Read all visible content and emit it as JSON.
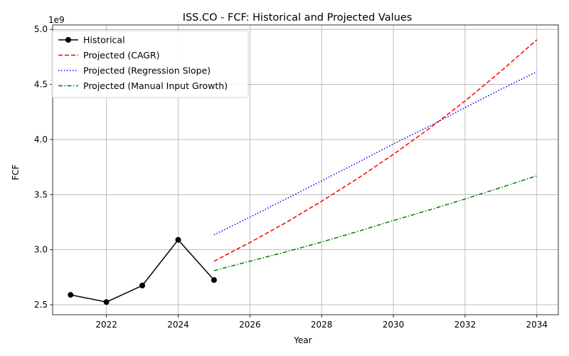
{
  "chart_data": {
    "type": "line",
    "title": "ISS.CO - FCF: Historical and Projected Values",
    "xlabel": "Year",
    "ylabel": "FCF",
    "y_offset_label": "1e9",
    "y_scale": 1000000000,
    "xlim": [
      2020.5,
      2034.6
    ],
    "ylim": [
      2410000000,
      5040000000
    ],
    "x_ticks": [
      2022,
      2024,
      2026,
      2028,
      2030,
      2032,
      2034
    ],
    "x_tick_labels": [
      "2022",
      "2024",
      "2026",
      "2028",
      "2030",
      "2032",
      "2034"
    ],
    "y_ticks": [
      2500000000,
      3000000000,
      3500000000,
      4000000000,
      4500000000,
      5000000000
    ],
    "y_tick_labels": [
      "2.5",
      "3.0",
      "3.5",
      "4.0",
      "4.5",
      "5.0"
    ],
    "grid": true,
    "legend_position": "top-left",
    "series": [
      {
        "name": "Historical",
        "color": "#000000",
        "style": "solid",
        "marker": "circle",
        "x": [
          2021,
          2022,
          2023,
          2024,
          2025
        ],
        "y": [
          2590000000,
          2525000000,
          2675000000,
          3090000000,
          2725000000
        ]
      },
      {
        "name": "Projected (CAGR)",
        "color": "#ff0000",
        "style": "dashed",
        "marker": "none",
        "x": [
          2025,
          2026,
          2027,
          2028,
          2029,
          2030,
          2031,
          2032,
          2033,
          2034
        ],
        "y": [
          2895000000,
          3065000000,
          3245000000,
          3440000000,
          3645000000,
          3865000000,
          4100000000,
          4350000000,
          4620000000,
          4905000000
        ]
      },
      {
        "name": "Projected (Regression Slope)",
        "color": "#0000ff",
        "style": "dotted",
        "marker": "none",
        "x": [
          2025,
          2026,
          2027,
          2028,
          2029,
          2030,
          2031,
          2032,
          2033,
          2034
        ],
        "y": [
          3135000000,
          3295000000,
          3460000000,
          3625000000,
          3790000000,
          3960000000,
          4120000000,
          4290000000,
          4455000000,
          4615000000
        ]
      },
      {
        "name": "Projected (Manual Input Growth)",
        "color": "#008000",
        "style": "dashdot",
        "marker": "none",
        "x": [
          2025,
          2026,
          2027,
          2028,
          2029,
          2030,
          2031,
          2032,
          2033,
          2034
        ],
        "y": [
          2810000000,
          2895000000,
          2980000000,
          3070000000,
          3165000000,
          3265000000,
          3360000000,
          3460000000,
          3565000000,
          3670000000
        ]
      }
    ]
  }
}
